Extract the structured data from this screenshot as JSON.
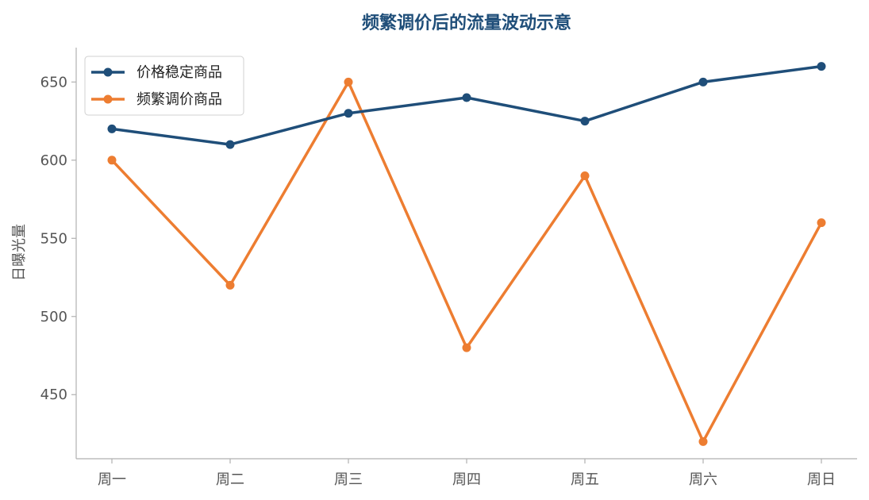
{
  "chart_data": {
    "type": "line",
    "title": "频繁调价后的流量波动示意",
    "xlabel": "",
    "ylabel": "日曝光量",
    "categories": [
      "周一",
      "周二",
      "周三",
      "周四",
      "周五",
      "周六",
      "周日"
    ],
    "yticks": [
      450,
      500,
      550,
      600,
      650
    ],
    "ylim": [
      409,
      672
    ],
    "grid": false,
    "legend_position": "top-left",
    "series": [
      {
        "name": "价格稳定商品",
        "color": "#1f4e79",
        "values": [
          620,
          610,
          630,
          640,
          625,
          650,
          660
        ]
      },
      {
        "name": "频繁调价商品",
        "color": "#ed7d31",
        "values": [
          600,
          520,
          650,
          480,
          590,
          420,
          560
        ]
      }
    ]
  },
  "colors": {
    "title": "#1f4e79",
    "axis": "#b0b0b0",
    "tick_text": "#555555"
  }
}
